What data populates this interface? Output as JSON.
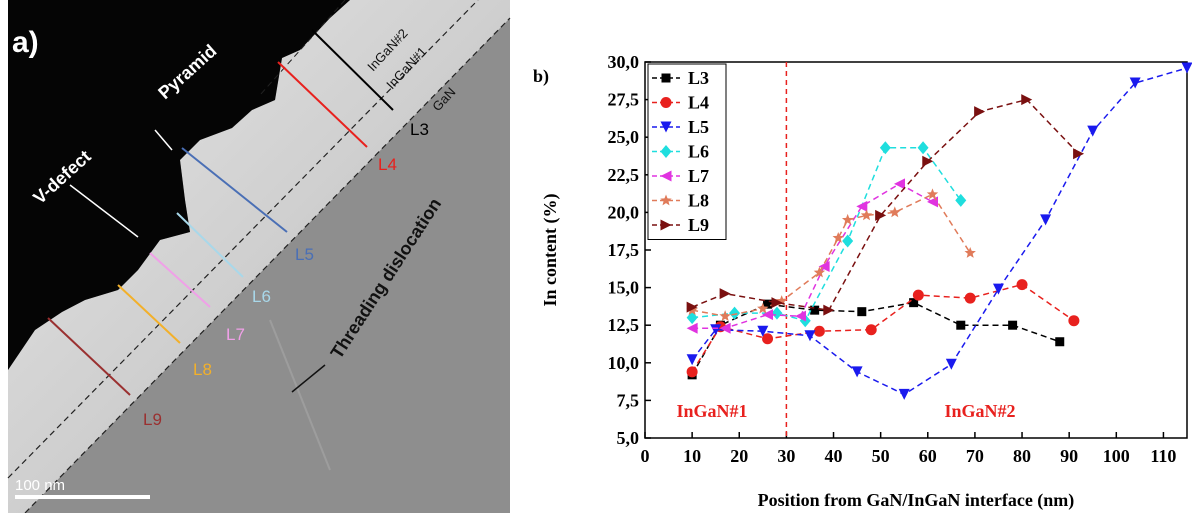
{
  "panel_a": {
    "label": "a)",
    "texts": {
      "pyramid": "Pyramid",
      "v_defect": "V-defect",
      "ingan2": "InGaN#2",
      "ingan1": "InGaN#1",
      "gan": "GaN",
      "threading": "Threading dislocation",
      "scale": "100 nm"
    },
    "lines": [
      {
        "name": "L3",
        "color": "#000000"
      },
      {
        "name": "L4",
        "color": "#e8211e"
      },
      {
        "name": "L5",
        "color": "#4a6fb5"
      },
      {
        "name": "L6",
        "color": "#a8d8ea"
      },
      {
        "name": "L7",
        "color": "#f0a0e8"
      },
      {
        "name": "L8",
        "color": "#f2b02a"
      },
      {
        "name": "L9",
        "color": "#9a3030"
      }
    ]
  },
  "chart_data": {
    "type": "line",
    "panel_label": "b)",
    "x_label": "Position from GaN/InGaN interface (nm)",
    "y_label": "In content (%)",
    "xlim": [
      0,
      115
    ],
    "ylim": [
      5,
      30
    ],
    "xticks": [
      0,
      10,
      20,
      30,
      40,
      50,
      60,
      70,
      80,
      90,
      100,
      110
    ],
    "yticks": [
      {
        "value": 5,
        "label": "5,0"
      },
      {
        "value": 7.5,
        "label": "7,5"
      },
      {
        "value": 10,
        "label": "10,0"
      },
      {
        "value": 12.5,
        "label": "12,5"
      },
      {
        "value": 15,
        "label": "15,0"
      },
      {
        "value": 17.5,
        "label": "17,5"
      },
      {
        "value": 20,
        "label": "20,0"
      },
      {
        "value": 22.5,
        "label": "22,5"
      },
      {
        "value": 25,
        "label": "25,0"
      },
      {
        "value": 27.5,
        "label": "27,5"
      },
      {
        "value": 30,
        "label": "30,0"
      }
    ],
    "reference_line": {
      "x": 30,
      "color": "#e8211e"
    },
    "annotations": [
      "InGaN#1",
      "InGaN#2"
    ],
    "legend": "upper left",
    "series": [
      {
        "name": "L3",
        "color": "#000000",
        "marker": "square",
        "x": [
          10,
          16,
          26,
          36,
          46,
          57,
          67,
          78,
          88
        ],
        "values": [
          9.2,
          12.5,
          13.9,
          13.5,
          13.4,
          14.0,
          12.5,
          12.5,
          11.4
        ]
      },
      {
        "name": "L4",
        "color": "#e8211e",
        "marker": "circle",
        "x": [
          10,
          16,
          26,
          37,
          48,
          58,
          69,
          80,
          91
        ],
        "values": [
          9.4,
          12.4,
          11.6,
          12.1,
          12.2,
          14.5,
          14.3,
          15.2,
          12.8
        ]
      },
      {
        "name": "L5",
        "color": "#1a1aee",
        "marker": "tri-down",
        "x": [
          10,
          15,
          25,
          35,
          45,
          55,
          65,
          75,
          85,
          95,
          104,
          115
        ],
        "values": [
          10.2,
          12.2,
          12.1,
          11.8,
          9.4,
          7.9,
          9.9,
          14.9,
          19.5,
          25.4,
          28.6,
          29.6
        ]
      },
      {
        "name": "L6",
        "color": "#1fdede",
        "marker": "diamond",
        "x": [
          10,
          19,
          28,
          34,
          43,
          51,
          59,
          67
        ],
        "values": [
          13.0,
          13.3,
          13.3,
          12.8,
          18.1,
          24.3,
          24.3,
          20.8
        ]
      },
      {
        "name": "L7",
        "color": "#e033e0",
        "marker": "tri-left",
        "x": [
          10,
          17,
          26,
          33,
          38,
          46,
          54,
          61
        ],
        "values": [
          12.3,
          12.3,
          13.2,
          13.1,
          16.4,
          20.4,
          21.9,
          20.7
        ]
      },
      {
        "name": "L8",
        "color": "#e07b5a",
        "marker": "star",
        "x": [
          10,
          17,
          25,
          29,
          37,
          41,
          43,
          47,
          53,
          61,
          69
        ],
        "values": [
          13.5,
          13.1,
          13.6,
          14.1,
          16.0,
          18.3,
          19.5,
          19.8,
          20.0,
          21.2,
          17.3
        ]
      },
      {
        "name": "L9",
        "color": "#7a1010",
        "marker": "tri-right",
        "x": [
          10,
          17,
          28,
          39,
          50,
          60,
          71,
          81,
          92
        ],
        "values": [
          13.7,
          14.6,
          14.0,
          13.5,
          19.8,
          23.4,
          26.7,
          27.5,
          23.9
        ]
      }
    ]
  }
}
